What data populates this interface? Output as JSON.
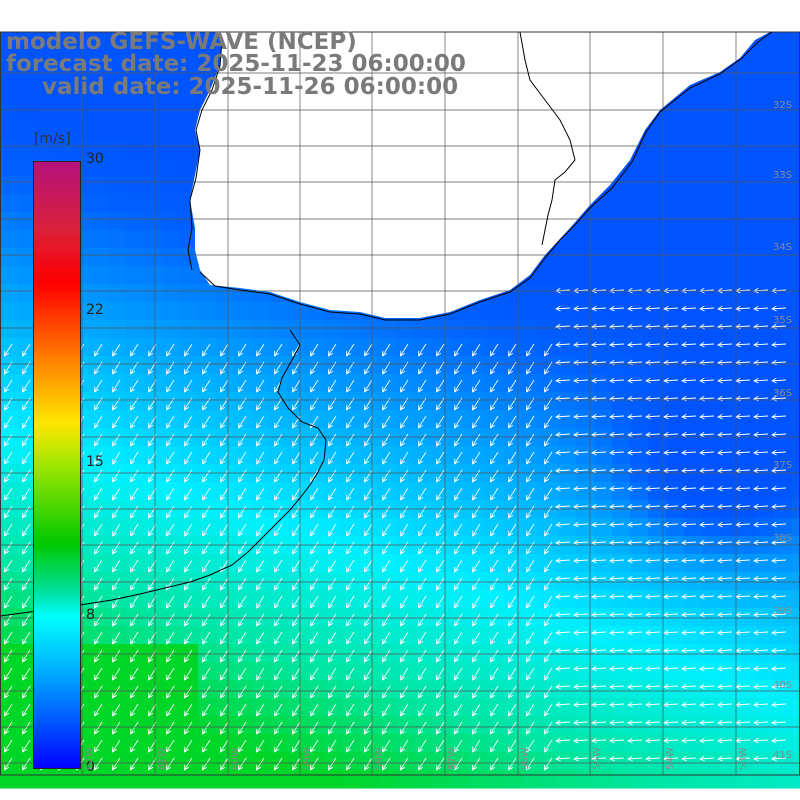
{
  "title": {
    "line1": "modelo GEFS-WAVE (NCEP)",
    "line2": "forecast date: 2025-11-23 06:00:00",
    "line3": "valid date: 2025-11-26 06:00:00"
  },
  "legend": {
    "unit": "[m/s]",
    "ticks": [
      "30",
      "22",
      "15",
      "8",
      "0"
    ],
    "tick_values": [
      30,
      22,
      15,
      8,
      0
    ],
    "colors": [
      "#0000ff",
      "#0050ff",
      "#00b8ff",
      "#00ffff",
      "#00e0a0",
      "#00c800",
      "#9ee600",
      "#ffe600",
      "#ff7a00",
      "#ff0000",
      "#d8203a",
      "#b4127d"
    ]
  },
  "latitude_labels": [
    "32S",
    "33S",
    "34S",
    "35S",
    "36S",
    "37S",
    "38S",
    "39S",
    "40S",
    "41S"
  ],
  "longitude_labels": [
    "62W",
    "61W",
    "60W",
    "59W",
    "58W",
    "57W",
    "56W",
    "55W",
    "54W",
    "53W"
  ],
  "map": {
    "background_color": "#ffffff",
    "grid_color": "#555555",
    "land_color": "#ffffff",
    "coast_color": "#000000",
    "arrow_color": "#ffffff",
    "wind_field_summary": {
      "speed_range_mps": [
        4,
        11
      ],
      "south_west_max": "green",
      "east_min": "blue"
    }
  }
}
